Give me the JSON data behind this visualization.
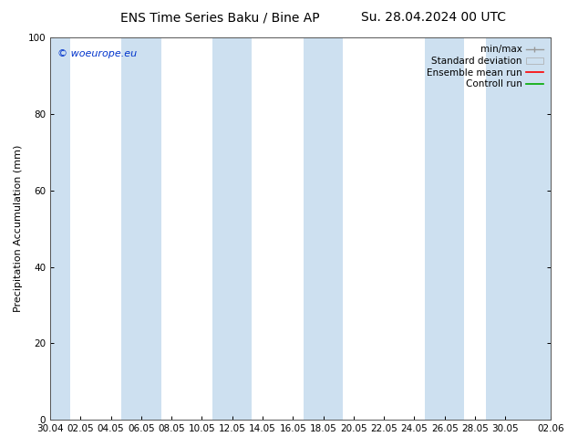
{
  "title_left": "ENS Time Series Baku / Bine AP",
  "title_right": "Su. 28.04.2024 00 UTC",
  "ylabel": "Precipitation Accumulation (mm)",
  "ylim": [
    0,
    100
  ],
  "yticks": [
    0,
    20,
    40,
    60,
    80,
    100
  ],
  "watermark": "© woeurope.eu",
  "watermark_color": "#0033cc",
  "bg_color": "#ffffff",
  "plot_bg_color": "#ffffff",
  "band_color": "#cde0f0",
  "x_tick_labels": [
    "30.04",
    "02.05",
    "04.05",
    "06.05",
    "08.05",
    "10.05",
    "12.05",
    "14.05",
    "16.05",
    "18.05",
    "20.05",
    "22.05",
    "24.05",
    "26.05",
    "28.05",
    "30.05",
    "02.06"
  ],
  "x_tick_positions": [
    0,
    2,
    4,
    6,
    8,
    10,
    12,
    14,
    16,
    18,
    20,
    22,
    24,
    26,
    28,
    30,
    33
  ],
  "shaded_bands": [
    [
      -0.3,
      1.3
    ],
    [
      4.7,
      7.3
    ],
    [
      10.7,
      13.3
    ],
    [
      16.7,
      19.3
    ],
    [
      24.7,
      27.3
    ],
    [
      28.7,
      33.3
    ]
  ],
  "legend_labels": [
    "min/max",
    "Standard deviation",
    "Ensemble mean run",
    "Controll run"
  ],
  "minmax_color": "#999999",
  "std_color": "#cde0f0",
  "ens_color": "#ff0000",
  "ctrl_color": "#00aa00",
  "font_size_title": 10,
  "font_size_axis": 8,
  "font_size_tick": 7.5,
  "font_size_legend": 7.5,
  "font_size_watermark": 8
}
